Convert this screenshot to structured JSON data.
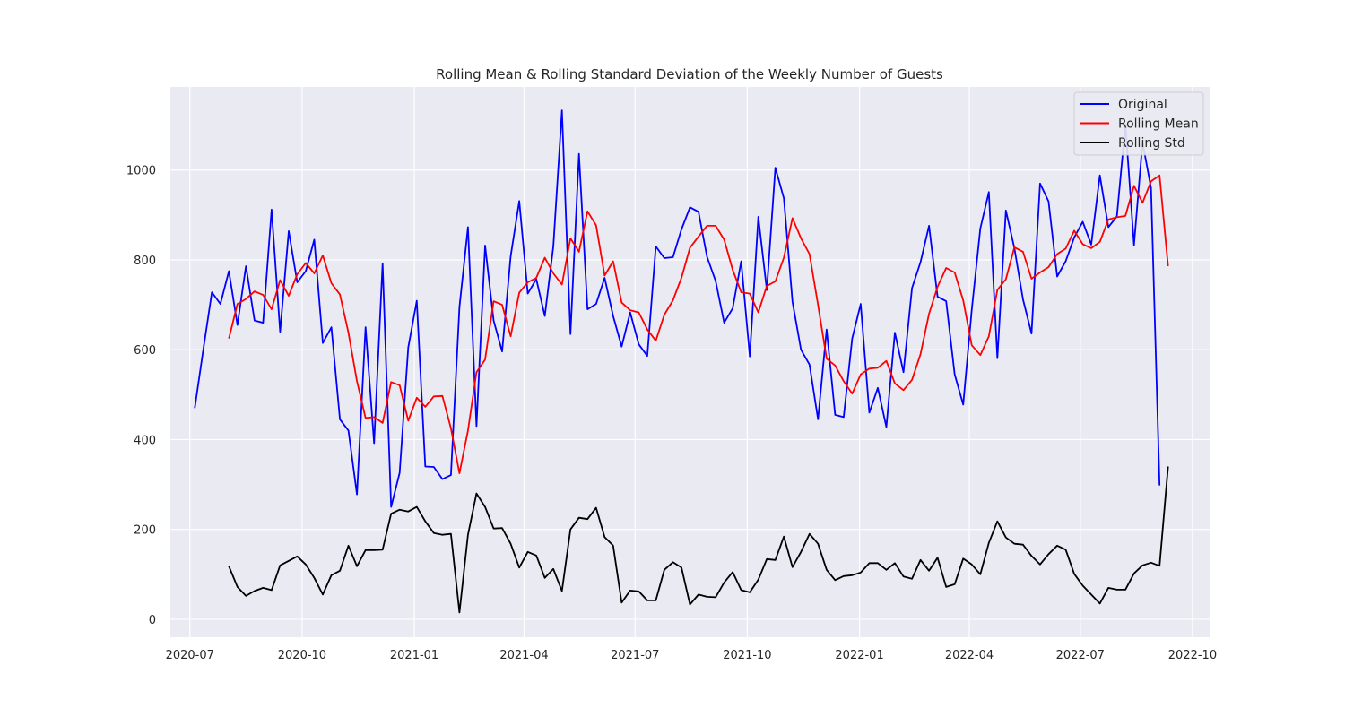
{
  "chart_data": {
    "type": "line",
    "title": "Rolling Mean & Rolling Standard Deviation of the Weekly Number of Guests",
    "xlabel": "",
    "ylabel": "",
    "x_range": [
      "2020-06-15",
      "2022-10-15"
    ],
    "ylim": [
      -40,
      1185
    ],
    "x_ticks": [
      {
        "date": "2020-07-01",
        "label": "2020-07"
      },
      {
        "date": "2020-10-01",
        "label": "2020-10"
      },
      {
        "date": "2021-01-01",
        "label": "2021-01"
      },
      {
        "date": "2021-04-01",
        "label": "2021-04"
      },
      {
        "date": "2021-07-01",
        "label": "2021-07"
      },
      {
        "date": "2021-10-01",
        "label": "2021-10"
      },
      {
        "date": "2022-01-01",
        "label": "2022-01"
      },
      {
        "date": "2022-04-01",
        "label": "2022-04"
      },
      {
        "date": "2022-07-01",
        "label": "2022-07"
      },
      {
        "date": "2022-10-01",
        "label": "2022-10"
      }
    ],
    "y_ticks": [
      0,
      200,
      400,
      600,
      800,
      1000
    ],
    "grid": true,
    "legend_position": "top-right",
    "x_start": "2020-07-05",
    "x_step": "weekly (7 days)",
    "series": [
      {
        "name": "Original",
        "color": "#0000ff",
        "values": [
          470,
          600,
          728,
          702,
          775,
          655,
          786,
          665,
          660,
          912,
          640,
          864,
          750,
          775,
          845,
          615,
          650,
          445,
          420,
          278,
          650,
          392,
          792,
          250,
          326,
          605,
          709,
          340,
          339,
          312,
          321,
          695,
          873,
          430,
          832,
          665,
          596,
          808,
          931,
          725,
          757,
          675,
          830,
          1133,
          635,
          1036,
          690,
          702,
          760,
          675,
          607,
          683,
          612,
          586,
          830,
          804,
          806,
          868,
          917,
          907,
          807,
          753,
          660,
          692,
          797,
          585,
          896,
          733,
          1005,
          937,
          707,
          600,
          567,
          445,
          645,
          455,
          450,
          625,
          702,
          460,
          515,
          428,
          638,
          550,
          737,
          795,
          876,
          718,
          708,
          545,
          478,
          688,
          870,
          951,
          581,
          910,
          826,
          712,
          636,
          970,
          930,
          763,
          797,
          850,
          885,
          834,
          988,
          873,
          897,
          1101,
          833,
          1062,
          960,
          298
        ],
        "start_index": 0
      },
      {
        "name": "Rolling Mean",
        "color": "#ff0000",
        "start_index": 4,
        "values": [
          625,
          702,
          713,
          730,
          722,
          690,
          755,
          720,
          768,
          793,
          770,
          810,
          748,
          723,
          638,
          530,
          448,
          450,
          437,
          528,
          521,
          442,
          493,
          473,
          496,
          497,
          425,
          325,
          420,
          550,
          578,
          708,
          700,
          630,
          727,
          750,
          760,
          805,
          770,
          745,
          848,
          818,
          908,
          877,
          765,
          797,
          705,
          688,
          683,
          645,
          620,
          678,
          710,
          760,
          827,
          852,
          876,
          876,
          845,
          778,
          728,
          725,
          683,
          742,
          752,
          805,
          893,
          848,
          813,
          700,
          580,
          565,
          530,
          502,
          545,
          558,
          560,
          575,
          525,
          510,
          533,
          590,
          680,
          740,
          782,
          772,
          710,
          610,
          588,
          630,
          733,
          757,
          828,
          818,
          758,
          772,
          784,
          813,
          825,
          865,
          835,
          826,
          840,
          890,
          895,
          898,
          965,
          927,
          975,
          988,
          786
        ]
      },
      {
        "name": "Rolling Std",
        "color": "#000000",
        "start_index": 4,
        "values": [
          118,
          72,
          52,
          63,
          70,
          65,
          120,
          130,
          140,
          122,
          92,
          55,
          98,
          108,
          164,
          118,
          154,
          154,
          155,
          235,
          244,
          240,
          250,
          218,
          192,
          188,
          190,
          15,
          188,
          280,
          250,
          202,
          203,
          168,
          115,
          150,
          142,
          92,
          112,
          63,
          200,
          226,
          223,
          248,
          183,
          164,
          37,
          64,
          62,
          42,
          42,
          110,
          127,
          115,
          33,
          55,
          50,
          49,
          82,
          105,
          65,
          60,
          88,
          134,
          132,
          184,
          116,
          150,
          190,
          168,
          110,
          87,
          96,
          98,
          104,
          125,
          125,
          110,
          125,
          95,
          90,
          132,
          108,
          137,
          72,
          78,
          135,
          122,
          100,
          170,
          218,
          182,
          168,
          166,
          141,
          122,
          145,
          164,
          155,
          101,
          75,
          55,
          35,
          70,
          66,
          66,
          102,
          120,
          126,
          119,
          340
        ]
      }
    ]
  }
}
